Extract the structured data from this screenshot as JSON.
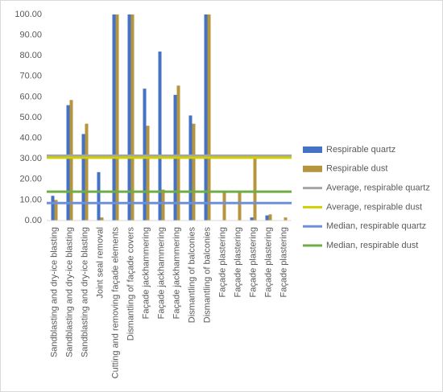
{
  "chart_data": {
    "type": "bar",
    "categories": [
      "Sandblasting and dry-ice blasting",
      "Sandblasting and dry-ice blasting",
      "Sandblasting and dry-ice blasting",
      "Joint seal removal",
      "Cutting and removing façade elements",
      "Dismantling of façade covers",
      "Façade jackhammering",
      "Façade jackhammering",
      "Façade jackhammering",
      "Dismantling of balconies",
      "Dismantling of balconies",
      "Façade plastering",
      "Façade plastering",
      "Façade plastering",
      "Façade plastering",
      "Façade plastering"
    ],
    "series": [
      {
        "name": "Respirable quartz",
        "color": "#4472c4",
        "values": [
          12,
          56,
          42,
          23.5,
          100,
          100,
          64,
          82,
          61,
          51,
          100,
          0,
          0,
          1.5,
          2.5,
          0
        ]
      },
      {
        "name": "Respirable dust",
        "color": "#b5963e",
        "values": [
          10,
          58.5,
          47,
          1.5,
          100,
          100,
          46,
          15,
          65.5,
          47,
          100,
          14,
          14,
          30,
          3,
          1.5
        ]
      }
    ],
    "reference_lines": [
      {
        "name": "Average, respirable quartz",
        "color": "#a5a5a5",
        "value": 31.5
      },
      {
        "name": "Average, respirable dust",
        "color": "#d0d000",
        "value": 30.5
      },
      {
        "name": "Median, respirable quartz",
        "color": "#6f8fd8",
        "value": 8.5
      },
      {
        "name": "Median, respirable dust",
        "color": "#70ad47",
        "value": 14
      }
    ],
    "ylim": [
      0,
      100
    ],
    "yticks": [
      {
        "value": 0,
        "label": "0.00"
      },
      {
        "value": 10,
        "label": "10.00"
      },
      {
        "value": 20,
        "label": "20.00"
      },
      {
        "value": 30,
        "label": "30.00"
      },
      {
        "value": 40,
        "label": "40.00"
      },
      {
        "value": 50,
        "label": "50.00"
      },
      {
        "value": 60,
        "label": "60.00"
      },
      {
        "value": 70,
        "label": "70.00"
      },
      {
        "value": 80,
        "label": "80.00"
      },
      {
        "value": 90,
        "label": "90.00"
      },
      {
        "value": 100,
        "label": "100.00"
      }
    ],
    "grid": false,
    "legend": "right"
  }
}
